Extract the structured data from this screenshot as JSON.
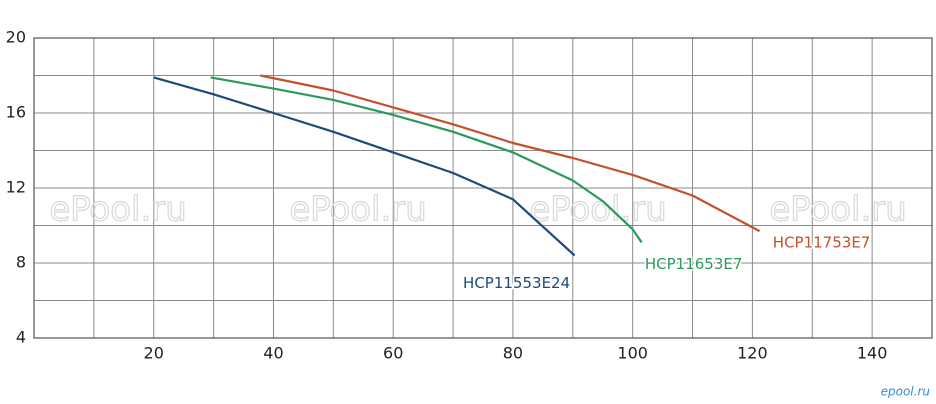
{
  "chart_data": {
    "type": "line",
    "watermark": "ePool.ru",
    "logo": "epool.ru",
    "xlim": [
      0,
      150
    ],
    "xticks": [
      20,
      40,
      60,
      80,
      100,
      120,
      140
    ],
    "ylim": [
      4,
      20
    ],
    "yticks": [
      4,
      8,
      12,
      16,
      20
    ],
    "grid": true,
    "series": [
      {
        "name": "HCP11553E24",
        "color": "#1f4a7a",
        "x": [
          20,
          30,
          40,
          50,
          60,
          70,
          80,
          90.3
        ],
        "values": [
          17.9,
          17.0,
          16.0,
          15.0,
          13.9,
          12.8,
          11.4,
          8.4
        ]
      },
      {
        "name": "HCP11653E7",
        "color": "#2a9a5c",
        "x": [
          29.5,
          40,
          50,
          60,
          70,
          80,
          90,
          95,
          100,
          101.5
        ],
        "values": [
          17.9,
          17.3,
          16.7,
          15.9,
          15.0,
          13.9,
          12.4,
          11.3,
          9.8,
          9.1
        ]
      },
      {
        "name": "HCP11753E7",
        "color": "#c4502d",
        "x": [
          37.8,
          50,
          60,
          70,
          80,
          90,
          100,
          110,
          121.2
        ],
        "values": [
          18.0,
          17.2,
          16.3,
          15.4,
          14.4,
          13.6,
          12.7,
          11.6,
          9.7
        ]
      }
    ]
  }
}
